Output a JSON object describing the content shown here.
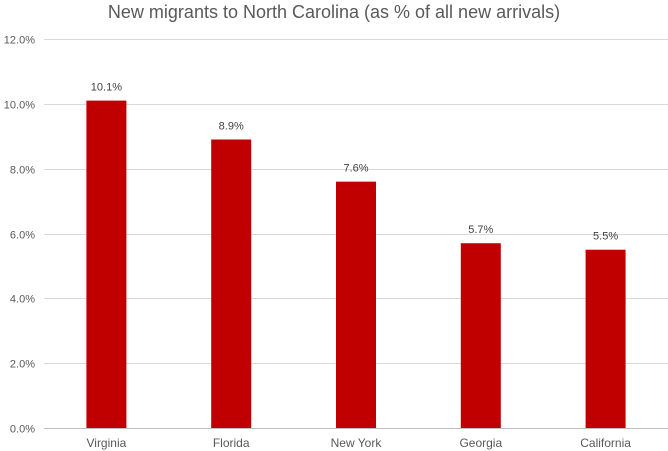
{
  "chart_data": {
    "type": "bar",
    "title": "New migrants to North Carolina (as % of all new arrivals)",
    "categories": [
      "Virginia",
      "Florida",
      "New York",
      "Georgia",
      "California"
    ],
    "values": [
      10.1,
      8.9,
      7.6,
      5.7,
      5.5
    ],
    "data_labels": [
      "10.1%",
      "8.9%",
      "7.6%",
      "5.7%",
      "5.5%"
    ],
    "ylim": [
      0,
      12
    ],
    "yticks": [
      0,
      2,
      4,
      6,
      8,
      10,
      12
    ],
    "ytick_labels": [
      "0.0%",
      "2.0%",
      "4.0%",
      "6.0%",
      "8.0%",
      "10.0%",
      "12.0%"
    ],
    "grid": true,
    "legend": "none",
    "bar_color": "#C00000"
  }
}
